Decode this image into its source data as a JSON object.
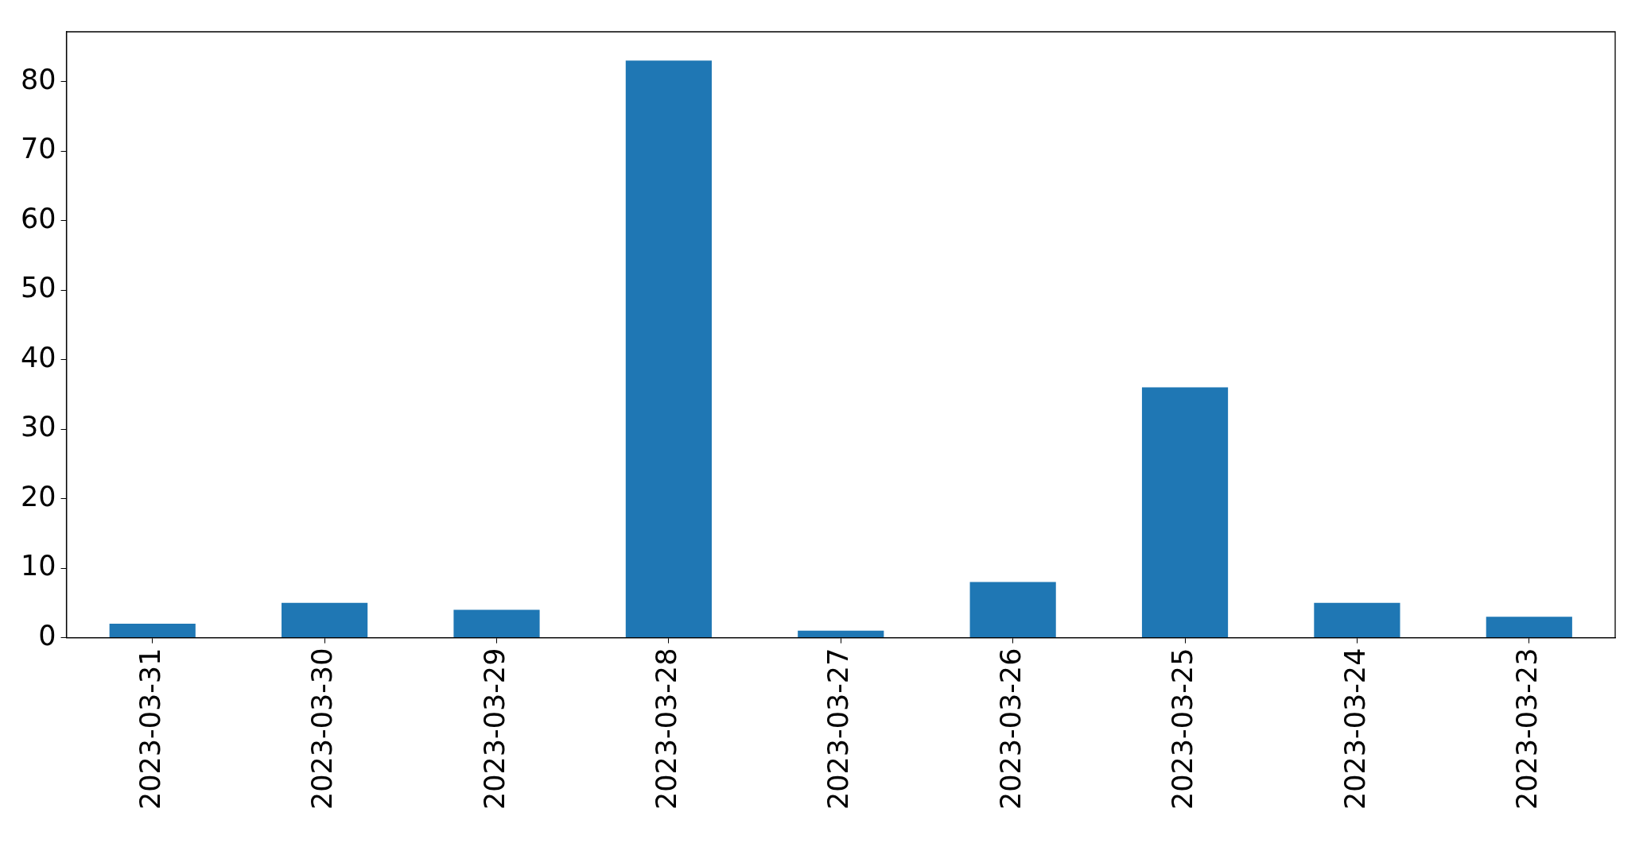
{
  "chart_data": {
    "type": "bar",
    "categories": [
      "2023-03-31",
      "2023-03-30",
      "2023-03-29",
      "2023-03-28",
      "2023-03-27",
      "2023-03-26",
      "2023-03-25",
      "2023-03-24",
      "2023-03-23"
    ],
    "values": [
      2,
      5,
      4,
      83,
      1,
      8,
      36,
      5,
      3
    ],
    "color": "#1f77b4",
    "ylim": [
      0,
      87.15
    ],
    "yticks": [
      0,
      10,
      20,
      30,
      40,
      50,
      60,
      70,
      80
    ],
    "grid": false,
    "legend": false
  }
}
